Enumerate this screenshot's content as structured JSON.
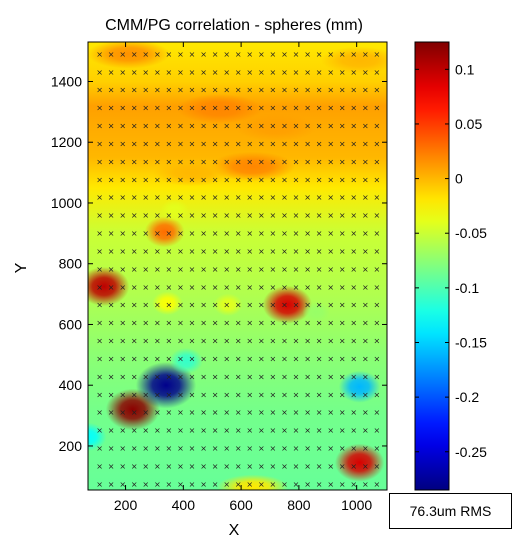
{
  "chart_data": {
    "type": "heatmap",
    "title": "CMM/PG correlation - spheres (mm)",
    "xlabel": "X",
    "ylabel": "Y",
    "xlim": [
      70,
      1105
    ],
    "ylim": [
      55,
      1530
    ],
    "xticks": [
      200,
      400,
      600,
      800,
      1000
    ],
    "yticks": [
      200,
      400,
      600,
      800,
      1000,
      1200,
      1400
    ],
    "colorbar": {
      "min": -0.285,
      "max": 0.125,
      "ticks": [
        0.1,
        0.05,
        0,
        -0.05,
        -0.1,
        -0.15,
        -0.2,
        -0.25
      ],
      "tick_labels": [
        "0.1",
        "0.05",
        "0",
        "-0.05",
        "-0.1",
        "-0.15",
        "-0.2",
        "-0.25"
      ],
      "colormap": "jet"
    },
    "field": {
      "baseline": [
        {
          "y": 60,
          "value": -0.09
        },
        {
          "y": 300,
          "value": -0.085
        },
        {
          "y": 500,
          "value": -0.075
        },
        {
          "y": 700,
          "value": -0.06
        },
        {
          "y": 900,
          "value": -0.05
        },
        {
          "y": 1050,
          "value": -0.02
        },
        {
          "y": 1150,
          "value": 0.0
        },
        {
          "y": 1250,
          "value": 0.005
        },
        {
          "y": 1320,
          "value": 0.01
        },
        {
          "y": 1400,
          "value": -0.01
        },
        {
          "y": 1530,
          "value": -0.02
        }
      ],
      "features": [
        {
          "x": 210,
          "y": 1490,
          "value": 0.015
        },
        {
          "x": 525,
          "y": 1310,
          "value": 0.02
        },
        {
          "x": 720,
          "y": 1250,
          "value": 0.01
        },
        {
          "x": 640,
          "y": 1120,
          "value": 0.02
        },
        {
          "x": 430,
          "y": 1100,
          "value": 0.0
        },
        {
          "x": 1010,
          "y": 1470,
          "value": 0.0
        },
        {
          "x": 125,
          "y": 725,
          "value": 0.1
        },
        {
          "x": 335,
          "y": 905,
          "value": 0.03
        },
        {
          "x": 370,
          "y": 975,
          "value": -0.04
        },
        {
          "x": 760,
          "y": 665,
          "value": 0.09
        },
        {
          "x": 345,
          "y": 670,
          "value": -0.03
        },
        {
          "x": 555,
          "y": 665,
          "value": -0.04
        },
        {
          "x": 225,
          "y": 320,
          "value": 0.12
        },
        {
          "x": 1010,
          "y": 145,
          "value": 0.09
        },
        {
          "x": 340,
          "y": 400,
          "value": -0.28
        },
        {
          "x": 1010,
          "y": 395,
          "value": -0.16
        },
        {
          "x": 70,
          "y": 230,
          "value": -0.13
        },
        {
          "x": 410,
          "y": 480,
          "value": -0.11
        },
        {
          "x": 640,
          "y": 65,
          "value": -0.02
        },
        {
          "x": 860,
          "y": 640,
          "value": -0.07
        }
      ]
    },
    "markers": {
      "symbol": "×",
      "x_start": 110,
      "x_step": 40,
      "x_count": 25,
      "y_start": 75,
      "y_step": 59,
      "y_count": 25
    }
  },
  "annotation": {
    "rms": "76.3um RMS"
  }
}
